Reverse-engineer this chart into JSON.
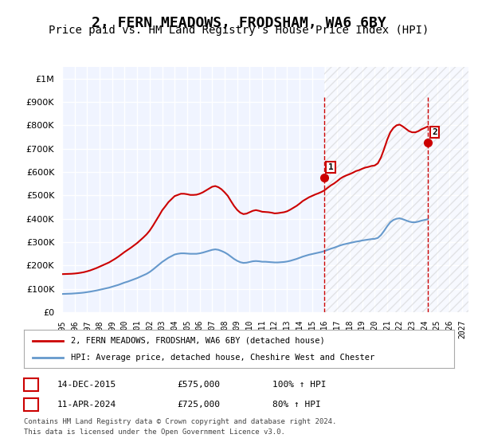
{
  "title": "2, FERN MEADOWS, FRODSHAM, WA6 6BY",
  "subtitle": "Price paid vs. HM Land Registry's House Price Index (HPI)",
  "title_fontsize": 13,
  "subtitle_fontsize": 10,
  "ylabel_ticks": [
    "£0",
    "£100K",
    "£200K",
    "£300K",
    "£400K",
    "£500K",
    "£600K",
    "£700K",
    "£800K",
    "£900K",
    "£1M"
  ],
  "ytick_values": [
    0,
    100000,
    200000,
    300000,
    400000,
    500000,
    600000,
    700000,
    800000,
    900000,
    1000000
  ],
  "ylim": [
    0,
    1050000
  ],
  "xlim_start": 1995.0,
  "xlim_end": 2027.5,
  "xtick_years": [
    1995,
    1996,
    1997,
    1998,
    1999,
    2000,
    2001,
    2002,
    2003,
    2004,
    2005,
    2006,
    2007,
    2008,
    2009,
    2010,
    2011,
    2012,
    2013,
    2014,
    2015,
    2016,
    2017,
    2018,
    2019,
    2020,
    2021,
    2022,
    2023,
    2024,
    2025,
    2026,
    2027
  ],
  "red_line_color": "#cc0000",
  "blue_line_color": "#6699cc",
  "background_color": "#ffffff",
  "plot_bg_color": "#f0f4ff",
  "grid_color": "#ffffff",
  "annotation_box_color": "#cc0000",
  "sale1_x": 2015.96,
  "sale1_y": 575000,
  "sale1_label": "1",
  "sale2_x": 2024.28,
  "sale2_y": 725000,
  "sale2_label": "2",
  "legend_line1": "2, FERN MEADOWS, FRODSHAM, WA6 6BY (detached house)",
  "legend_line2": "HPI: Average price, detached house, Cheshire West and Chester",
  "table_row1": [
    "1",
    "14-DEC-2015",
    "£575,000",
    "100% ↑ HPI"
  ],
  "table_row2": [
    "2",
    "11-APR-2024",
    "£725,000",
    "80% ↑ HPI"
  ],
  "footer_line1": "Contains HM Land Registry data © Crown copyright and database right 2024.",
  "footer_line2": "This data is licensed under the Open Government Licence v3.0.",
  "hpi_data_x": [
    1995.0,
    1995.25,
    1995.5,
    1995.75,
    1996.0,
    1996.25,
    1996.5,
    1996.75,
    1997.0,
    1997.25,
    1997.5,
    1997.75,
    1998.0,
    1998.25,
    1998.5,
    1998.75,
    1999.0,
    1999.25,
    1999.5,
    1999.75,
    2000.0,
    2000.25,
    2000.5,
    2000.75,
    2001.0,
    2001.25,
    2001.5,
    2001.75,
    2002.0,
    2002.25,
    2002.5,
    2002.75,
    2003.0,
    2003.25,
    2003.5,
    2003.75,
    2004.0,
    2004.25,
    2004.5,
    2004.75,
    2005.0,
    2005.25,
    2005.5,
    2005.75,
    2006.0,
    2006.25,
    2006.5,
    2006.75,
    2007.0,
    2007.25,
    2007.5,
    2007.75,
    2008.0,
    2008.25,
    2008.5,
    2008.75,
    2009.0,
    2009.25,
    2009.5,
    2009.75,
    2010.0,
    2010.25,
    2010.5,
    2010.75,
    2011.0,
    2011.25,
    2011.5,
    2011.75,
    2012.0,
    2012.25,
    2012.5,
    2012.75,
    2013.0,
    2013.25,
    2013.5,
    2013.75,
    2014.0,
    2014.25,
    2014.5,
    2014.75,
    2015.0,
    2015.25,
    2015.5,
    2015.75,
    2016.0,
    2016.25,
    2016.5,
    2016.75,
    2017.0,
    2017.25,
    2017.5,
    2017.75,
    2018.0,
    2018.25,
    2018.5,
    2018.75,
    2019.0,
    2019.25,
    2019.5,
    2019.75,
    2020.0,
    2020.25,
    2020.5,
    2020.75,
    2021.0,
    2021.25,
    2021.5,
    2021.75,
    2022.0,
    2022.25,
    2022.5,
    2022.75,
    2023.0,
    2023.25,
    2023.5,
    2023.75,
    2024.0,
    2024.25
  ],
  "hpi_data_y": [
    78000,
    78500,
    79000,
    79500,
    80500,
    81500,
    82500,
    84000,
    86000,
    88000,
    90500,
    93000,
    96000,
    99000,
    102000,
    105000,
    109000,
    113000,
    117000,
    122000,
    127000,
    131000,
    136000,
    141000,
    146000,
    152000,
    158000,
    164000,
    172000,
    182000,
    193000,
    204000,
    215000,
    224000,
    233000,
    240000,
    247000,
    250000,
    252000,
    252000,
    251000,
    250000,
    250000,
    250000,
    252000,
    255000,
    259000,
    263000,
    267000,
    269000,
    267000,
    262000,
    256000,
    248000,
    238000,
    228000,
    220000,
    214000,
    211000,
    212000,
    215000,
    218000,
    219000,
    218000,
    216000,
    216000,
    215000,
    214000,
    213000,
    213000,
    214000,
    215000,
    217000,
    220000,
    224000,
    228000,
    233000,
    238000,
    242000,
    246000,
    249000,
    252000,
    255000,
    258000,
    262000,
    267000,
    272000,
    276000,
    281000,
    286000,
    290000,
    293000,
    296000,
    299000,
    302000,
    304000,
    307000,
    309000,
    311000,
    313000,
    314000,
    318000,
    330000,
    348000,
    368000,
    385000,
    395000,
    400000,
    402000,
    398000,
    393000,
    388000,
    385000,
    385000,
    388000,
    392000,
    395000,
    398000
  ],
  "red_data_x": [
    1995.0,
    1995.25,
    1995.5,
    1995.75,
    1996.0,
    1996.25,
    1996.5,
    1996.75,
    1997.0,
    1997.25,
    1997.5,
    1997.75,
    1998.0,
    1998.25,
    1998.5,
    1998.75,
    1999.0,
    1999.25,
    1999.5,
    1999.75,
    2000.0,
    2000.25,
    2000.5,
    2000.75,
    2001.0,
    2001.25,
    2001.5,
    2001.75,
    2002.0,
    2002.25,
    2002.5,
    2002.75,
    2003.0,
    2003.25,
    2003.5,
    2003.75,
    2004.0,
    2004.25,
    2004.5,
    2004.75,
    2005.0,
    2005.25,
    2005.5,
    2005.75,
    2006.0,
    2006.25,
    2006.5,
    2006.75,
    2007.0,
    2007.25,
    2007.5,
    2007.75,
    2008.0,
    2008.25,
    2008.5,
    2008.75,
    2009.0,
    2009.25,
    2009.5,
    2009.75,
    2010.0,
    2010.25,
    2010.5,
    2010.75,
    2011.0,
    2011.25,
    2011.5,
    2011.75,
    2012.0,
    2012.25,
    2012.5,
    2012.75,
    2013.0,
    2013.25,
    2013.5,
    2013.75,
    2014.0,
    2014.25,
    2014.5,
    2014.75,
    2015.0,
    2015.25,
    2015.5,
    2015.75,
    2016.0,
    2016.25,
    2016.5,
    2016.75,
    2017.0,
    2017.25,
    2017.5,
    2017.75,
    2018.0,
    2018.25,
    2018.5,
    2018.75,
    2019.0,
    2019.25,
    2019.5,
    2019.75,
    2020.0,
    2020.25,
    2020.5,
    2020.75,
    2021.0,
    2021.25,
    2021.5,
    2021.75,
    2022.0,
    2022.25,
    2022.5,
    2022.75,
    2023.0,
    2023.25,
    2023.5,
    2023.75,
    2024.0,
    2024.25
  ],
  "red_data_y": [
    163000,
    163500,
    164000,
    164500,
    165500,
    167000,
    169000,
    171500,
    175000,
    179000,
    184000,
    189000,
    195000,
    201000,
    207000,
    213000,
    221000,
    229000,
    238000,
    248000,
    258000,
    267000,
    276000,
    286000,
    296000,
    308000,
    320000,
    333000,
    349000,
    369000,
    391000,
    413000,
    436000,
    453000,
    471000,
    484000,
    497000,
    502000,
    507000,
    507000,
    505000,
    502000,
    502000,
    503000,
    507000,
    513000,
    521000,
    529000,
    537000,
    540000,
    535000,
    526000,
    513000,
    498000,
    476000,
    455000,
    438000,
    426000,
    420000,
    422000,
    428000,
    434000,
    437000,
    434000,
    430000,
    429000,
    428000,
    426000,
    423000,
    424000,
    426000,
    428000,
    432000,
    439000,
    447000,
    455000,
    465000,
    476000,
    484000,
    492000,
    498000,
    504000,
    509000,
    515000,
    522000,
    533000,
    543000,
    551000,
    561000,
    572000,
    580000,
    586000,
    591000,
    597000,
    604000,
    608000,
    614000,
    619000,
    622000,
    626000,
    628000,
    637000,
    662000,
    698000,
    738000,
    770000,
    789000,
    800000,
    803000,
    795000,
    785000,
    775000,
    770000,
    770000,
    775000,
    783000,
    789000,
    795000
  ],
  "dashed_line1_x": [
    2015.96,
    2015.96
  ],
  "dashed_line1_y": [
    0,
    920000
  ],
  "dashed_line2_x": [
    2024.28,
    2024.28
  ],
  "dashed_line2_y": [
    0,
    920000
  ],
  "hatched_region_x1": 2015.96,
  "hatched_region_x2": 2027.5,
  "hatched_region_y1": 0,
  "hatched_region_y2": 1050000
}
